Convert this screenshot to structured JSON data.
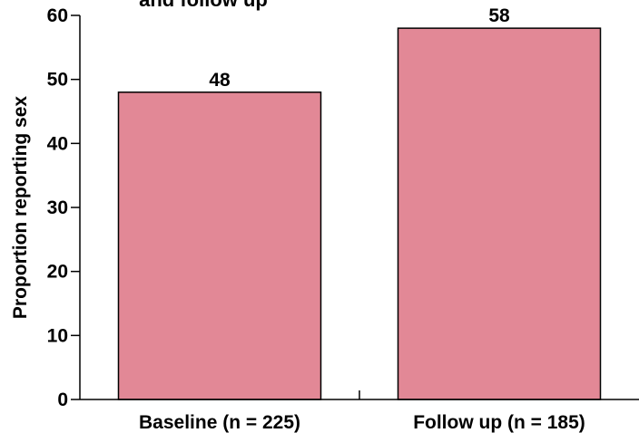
{
  "chart_data": {
    "type": "bar",
    "title": "and follow up",
    "xlabel": "",
    "ylabel": "Proportion reporting sex",
    "categories": [
      "Baseline (n = 225)",
      "Follow up (n = 185)"
    ],
    "values": [
      48,
      58
    ],
    "data_labels": [
      "48",
      "58"
    ],
    "ylim": [
      0,
      60
    ],
    "yticks": [
      0,
      10,
      20,
      30,
      40,
      50,
      60
    ],
    "ytick_labels": [
      "0",
      "10",
      "20",
      "30",
      "40",
      "50",
      "60"
    ],
    "grid": false,
    "legend": "none",
    "colors": {
      "bar_fill": "#e28896",
      "bar_stroke": "#000000",
      "axis": "#000000",
      "text": "#000000"
    }
  }
}
